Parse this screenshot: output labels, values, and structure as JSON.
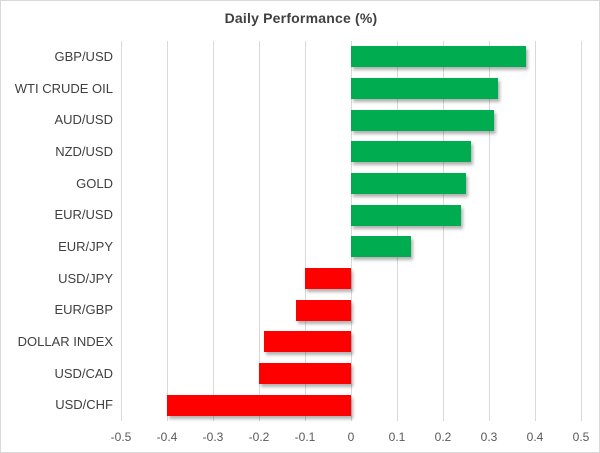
{
  "chart_data": {
    "type": "bar",
    "orientation": "horizontal",
    "title": "Daily Performance (%)",
    "xlabel": "",
    "ylabel": "",
    "xlim": [
      -0.5,
      0.5
    ],
    "grid": true,
    "legend": "none",
    "categories": [
      "GBP/USD",
      "WTI CRUDE OIL",
      "AUD/USD",
      "NZD/USD",
      "GOLD",
      "EUR/USD",
      "EUR/JPY",
      "USD/JPY",
      "EUR/GBP",
      "DOLLAR INDEX",
      "USD/CAD",
      "USD/CHF"
    ],
    "values": [
      0.38,
      0.32,
      0.31,
      0.26,
      0.25,
      0.24,
      0.13,
      -0.1,
      -0.12,
      -0.19,
      -0.2,
      -0.4
    ],
    "x_tick_labels": [
      "-0.5",
      "-0.4",
      "-0.3",
      "-0.2",
      "-0.1",
      "0",
      "0.1",
      "0.2",
      "0.3",
      "0.4",
      "0.5"
    ],
    "x_tick_values": [
      -0.5,
      -0.4,
      -0.3,
      -0.2,
      -0.1,
      0,
      0.1,
      0.2,
      0.3,
      0.4,
      0.5
    ],
    "colors": {
      "positive_bar": "#00ac50",
      "negative_bar": "#ff0000",
      "gridline": "#d9d9d9",
      "title_text": "#404040",
      "category_text": "#404040",
      "tick_text": "#595959",
      "background": "#ffffff",
      "border": "#d9d9d9"
    }
  }
}
